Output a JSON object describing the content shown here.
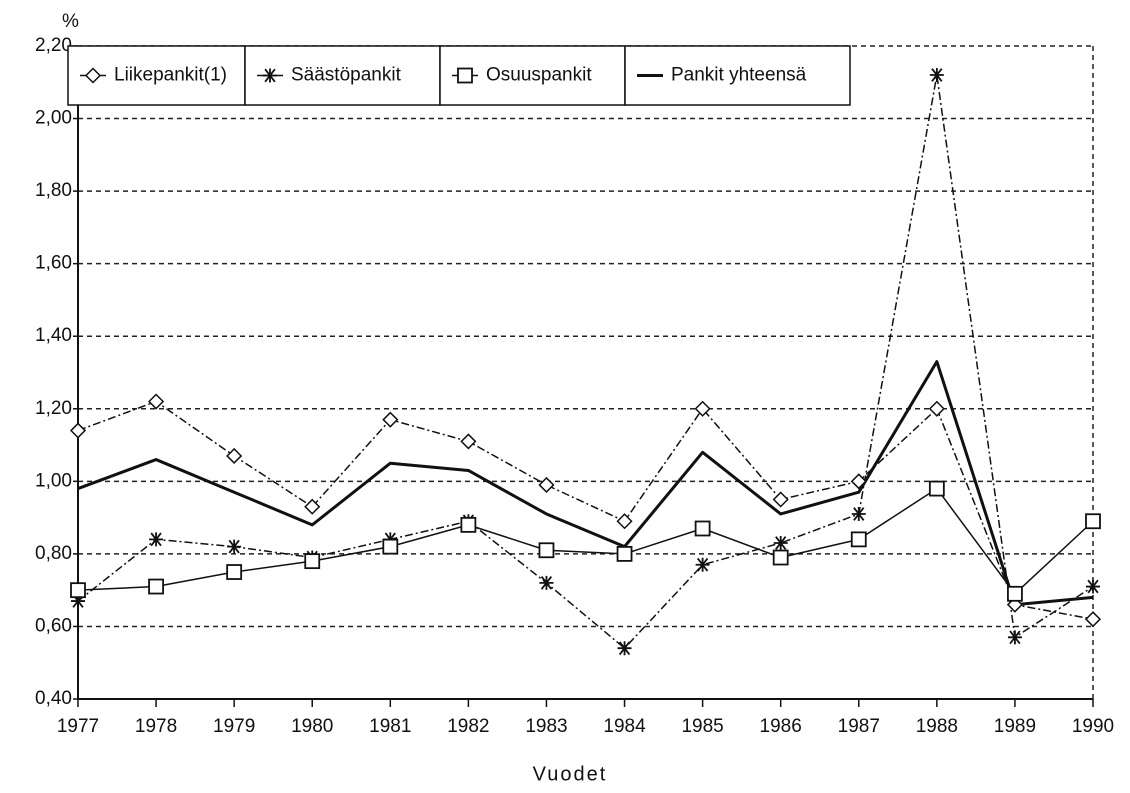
{
  "chart_data": {
    "type": "line",
    "y_label": "%",
    "x_label": "Vuodet",
    "categories": [
      "1977",
      "1978",
      "1979",
      "1980",
      "1981",
      "1982",
      "1983",
      "1984",
      "1985",
      "1986",
      "1987",
      "1988",
      "1989",
      "1990"
    ],
    "ylim": [
      0.4,
      2.2
    ],
    "yticks": [
      {
        "value": 0.4,
        "label": "0,40"
      },
      {
        "value": 0.6,
        "label": "0,60"
      },
      {
        "value": 0.8,
        "label": "0,80"
      },
      {
        "value": 1.0,
        "label": "1,00"
      },
      {
        "value": 1.2,
        "label": "1,20"
      },
      {
        "value": 1.4,
        "label": "1,40"
      },
      {
        "value": 1.6,
        "label": "1,60"
      },
      {
        "value": 1.8,
        "label": "1,80"
      },
      {
        "value": 2.0,
        "label": "2,00"
      },
      {
        "value": 2.2,
        "label": "2,20"
      }
    ],
    "grid": true,
    "legend": "top-left",
    "series": [
      {
        "name": "Liikepankit(1)",
        "color": "#111111",
        "marker": "diamond",
        "line_style": "dash-dot",
        "values": [
          1.14,
          1.22,
          1.07,
          0.93,
          1.17,
          1.11,
          0.99,
          0.89,
          1.2,
          0.95,
          1.0,
          1.2,
          0.66,
          0.62
        ]
      },
      {
        "name": "Säästöpankit",
        "color": "#111111",
        "marker": "asterisk",
        "line_style": "dash-dot",
        "values": [
          0.67,
          0.84,
          0.82,
          0.79,
          0.84,
          0.89,
          0.72,
          0.54,
          0.77,
          0.83,
          0.91,
          2.12,
          0.57,
          0.71
        ]
      },
      {
        "name": "Osuuspankit",
        "color": "#111111",
        "marker": "square",
        "line_style": "solid",
        "values": [
          0.7,
          0.71,
          0.75,
          0.78,
          0.82,
          0.88,
          0.81,
          0.8,
          0.87,
          0.79,
          0.84,
          0.98,
          0.69,
          0.89
        ]
      },
      {
        "name": "Pankit yhteensä",
        "color": "#111111",
        "marker": "none",
        "line_style": "thick",
        "values": [
          0.98,
          1.06,
          0.97,
          0.88,
          1.05,
          1.03,
          0.91,
          0.82,
          1.08,
          0.91,
          0.97,
          1.33,
          0.66,
          0.68
        ]
      }
    ]
  }
}
